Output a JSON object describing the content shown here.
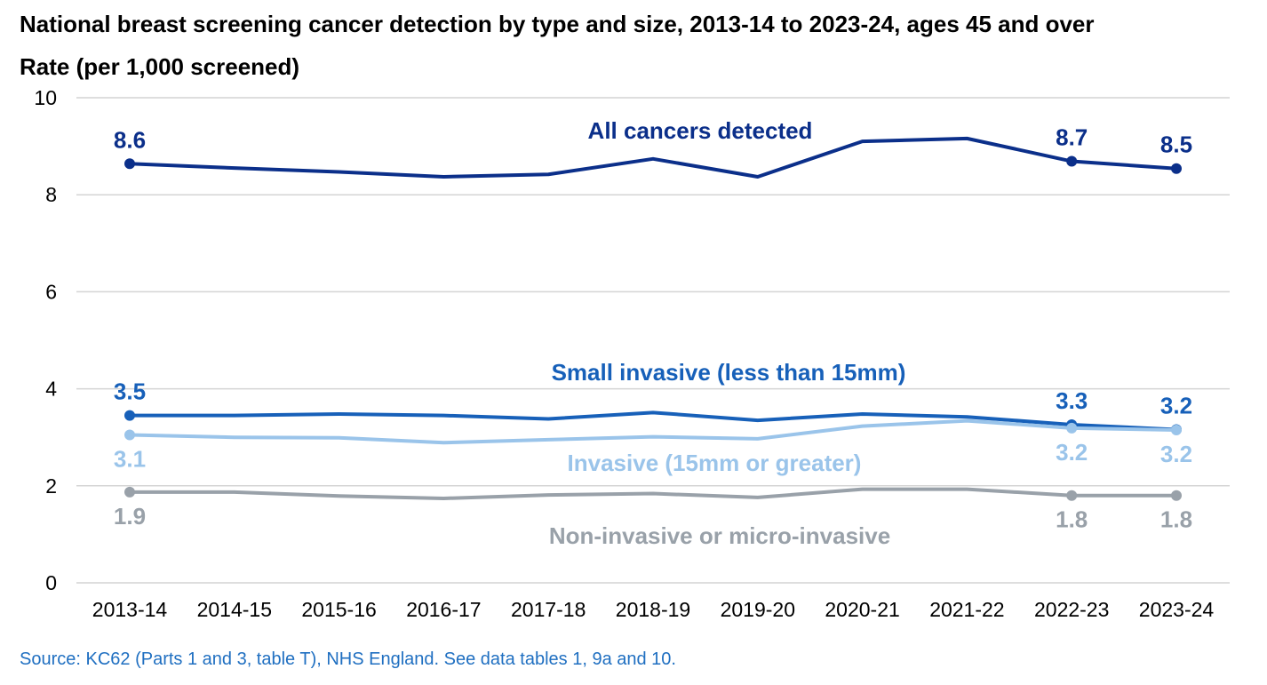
{
  "chart_data": {
    "type": "line",
    "title": "National breast screening cancer detection by type and size, 2013-14 to 2023-24, ages 45 and over",
    "ylabel": "Rate (per 1,000 screened)",
    "xlabel": "",
    "source": "Source: KC62 (Parts 1 and 3, table T), NHS England. See data tables 1, 9a and 10.",
    "categories": [
      "2013-14",
      "2014-15",
      "2015-16",
      "2016-17",
      "2017-18",
      "2018-19",
      "2019-20",
      "2020-21",
      "2021-22",
      "2022-23",
      "2023-24"
    ],
    "ylim": [
      0,
      10
    ],
    "yticks": [
      "0",
      "2",
      "4",
      "6",
      "8",
      "10"
    ],
    "grid": true,
    "series": [
      {
        "name": "All cancers detected",
        "color": "#0b2f8a",
        "values": [
          8.64,
          8.55,
          8.47,
          8.37,
          8.42,
          8.74,
          8.37,
          9.1,
          9.16,
          8.69,
          8.54
        ],
        "data_labels": [
          {
            "index": 0,
            "text": "8.6",
            "pos": "above"
          },
          {
            "index": 9,
            "text": "8.7",
            "pos": "above"
          },
          {
            "index": 10,
            "text": "8.5",
            "pos": "above"
          }
        ]
      },
      {
        "name": "Small invasive (less than 15mm)",
        "color": "#1760b9",
        "values": [
          3.45,
          3.45,
          3.48,
          3.45,
          3.38,
          3.51,
          3.35,
          3.48,
          3.42,
          3.26,
          3.16
        ],
        "data_labels": [
          {
            "index": 0,
            "text": "3.5",
            "pos": "above"
          },
          {
            "index": 9,
            "text": "3.3",
            "pos": "above"
          },
          {
            "index": 10,
            "text": "3.2",
            "pos": "above"
          }
        ]
      },
      {
        "name": "Invasive (15mm or greater)",
        "color": "#9ac4ea",
        "values": [
          3.05,
          3.0,
          2.99,
          2.89,
          2.95,
          3.01,
          2.97,
          3.23,
          3.34,
          3.19,
          3.15
        ],
        "data_labels": [
          {
            "index": 0,
            "text": "3.1",
            "pos": "below"
          },
          {
            "index": 9,
            "text": "3.2",
            "pos": "below"
          },
          {
            "index": 10,
            "text": "3.2",
            "pos": "below"
          }
        ]
      },
      {
        "name": "Non-invasive or micro-invasive",
        "color": "#99a1a9",
        "values": [
          1.87,
          1.87,
          1.79,
          1.74,
          1.81,
          1.84,
          1.76,
          1.93,
          1.93,
          1.8,
          1.8
        ],
        "data_labels": [
          {
            "index": 0,
            "text": "1.9",
            "pos": "below"
          },
          {
            "index": 9,
            "text": "1.8",
            "pos": "below"
          },
          {
            "index": 10,
            "text": "1.8",
            "pos": "below"
          }
        ]
      }
    ]
  }
}
